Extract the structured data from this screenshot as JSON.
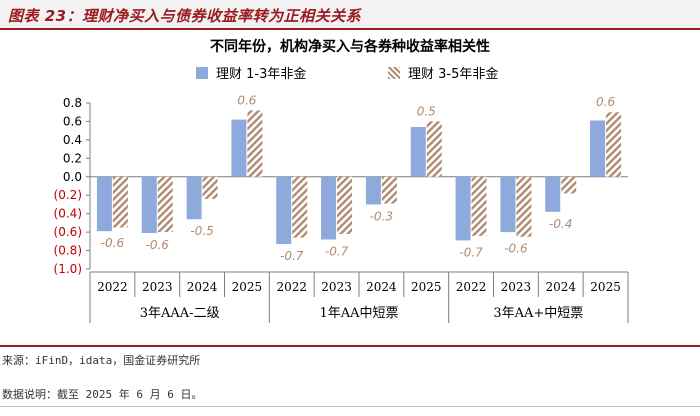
{
  "figure": {
    "header": "图表 23：理财净买入与债券收益率转为正相关关系",
    "source": "来源：iFinD，idata，国金证券研究所",
    "note": "数据说明：截至 2025 年 6 月 6 日。"
  },
  "colors": {
    "series1": "#8ea9db",
    "series2": "#b08a73",
    "negative_tick": "#c00000",
    "accent": "#9b1c20"
  },
  "chart_data": {
    "type": "bar",
    "title": "不同年份，机构净买入与各券种收益率相关性",
    "xlabel": "",
    "ylabel": "",
    "ylim": [
      -1.0,
      0.8
    ],
    "yticks": [
      0.8,
      0.6,
      0.4,
      0.2,
      0.0,
      -0.2,
      -0.4,
      -0.6,
      -0.8,
      -1.0
    ],
    "ytick_labels": [
      "0.8",
      "0.6",
      "0.4",
      "0.2",
      "0.0",
      "(0.2)",
      "(0.4)",
      "(0.6)",
      "(0.8)",
      "(1.0)"
    ],
    "grid": false,
    "legend_position": "top-center",
    "groups": [
      {
        "label": "3年AAA-二级",
        "categories": [
          "2022",
          "2023",
          "2024",
          "2025"
        ]
      },
      {
        "label": "1年AA中短票",
        "categories": [
          "2022",
          "2023",
          "2024",
          "2025"
        ]
      },
      {
        "label": "3年AA+中短票",
        "categories": [
          "2022",
          "2023",
          "2024",
          "2025"
        ]
      }
    ],
    "series": [
      {
        "name": "理财 1-3年非金",
        "style": "solid",
        "values": [
          -0.59,
          -0.61,
          -0.46,
          0.62,
          -0.73,
          -0.68,
          -0.3,
          0.54,
          -0.69,
          -0.6,
          -0.38,
          0.61
        ]
      },
      {
        "name": "理财 3-5年非金",
        "style": "hatched",
        "values": [
          -0.55,
          -0.6,
          -0.24,
          0.72,
          -0.66,
          -0.62,
          -0.29,
          0.6,
          -0.64,
          -0.65,
          -0.18,
          0.7
        ]
      }
    ],
    "data_labels": [
      "-0.6",
      "-0.6",
      "-0.5",
      "0.6",
      "-0.7",
      "-0.7",
      "-0.3",
      "0.5",
      "-0.7",
      "-0.6",
      "-0.4",
      "0.6"
    ]
  }
}
